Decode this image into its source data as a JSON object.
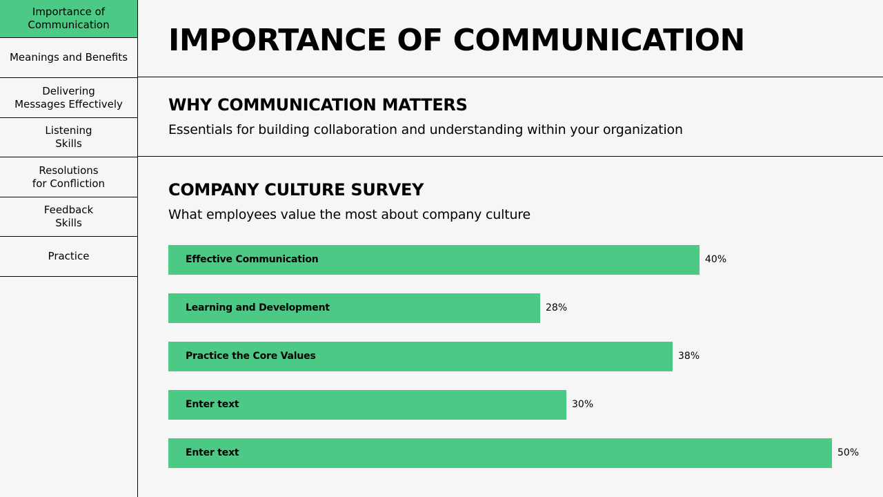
{
  "sidebar": {
    "items": [
      {
        "label": "Importance of\nCommunication",
        "active": true
      },
      {
        "label": "Meanings and Benefits",
        "active": false
      },
      {
        "label": "Delivering\nMessages Effectively",
        "active": false
      },
      {
        "label": "Listening\nSkills",
        "active": false
      },
      {
        "label": "Resolutions\nfor Confliction",
        "active": false
      },
      {
        "label": "Feedback\nSkills",
        "active": false
      },
      {
        "label": "Practice",
        "active": false
      }
    ]
  },
  "header": {
    "title": "IMPORTANCE OF COMMUNICATION"
  },
  "section_why": {
    "heading": "WHY COMMUNICATION MATTERS",
    "subtitle": "Essentials for building collaboration and understanding within your organization"
  },
  "section_survey": {
    "heading": "COMPANY CULTURE SURVEY",
    "subtitle": "What employees value the most about company culture"
  },
  "colors": {
    "accent": "#4bc985",
    "background": "#f6f6f6",
    "text": "#000000"
  },
  "chart_data": {
    "type": "bar",
    "orientation": "horizontal",
    "categories": [
      "Effective Communication",
      "Learning and Development",
      "Practice the Core Values",
      "Enter text",
      "Enter text"
    ],
    "values": [
      40,
      28,
      38,
      30,
      50
    ],
    "value_labels": [
      "40%",
      "28%",
      "38%",
      "30%",
      "50%"
    ],
    "unit": "%",
    "title": "COMPANY CULTURE SURVEY",
    "subtitle": "What employees value the most about company culture",
    "grid": false,
    "legend": "none"
  }
}
